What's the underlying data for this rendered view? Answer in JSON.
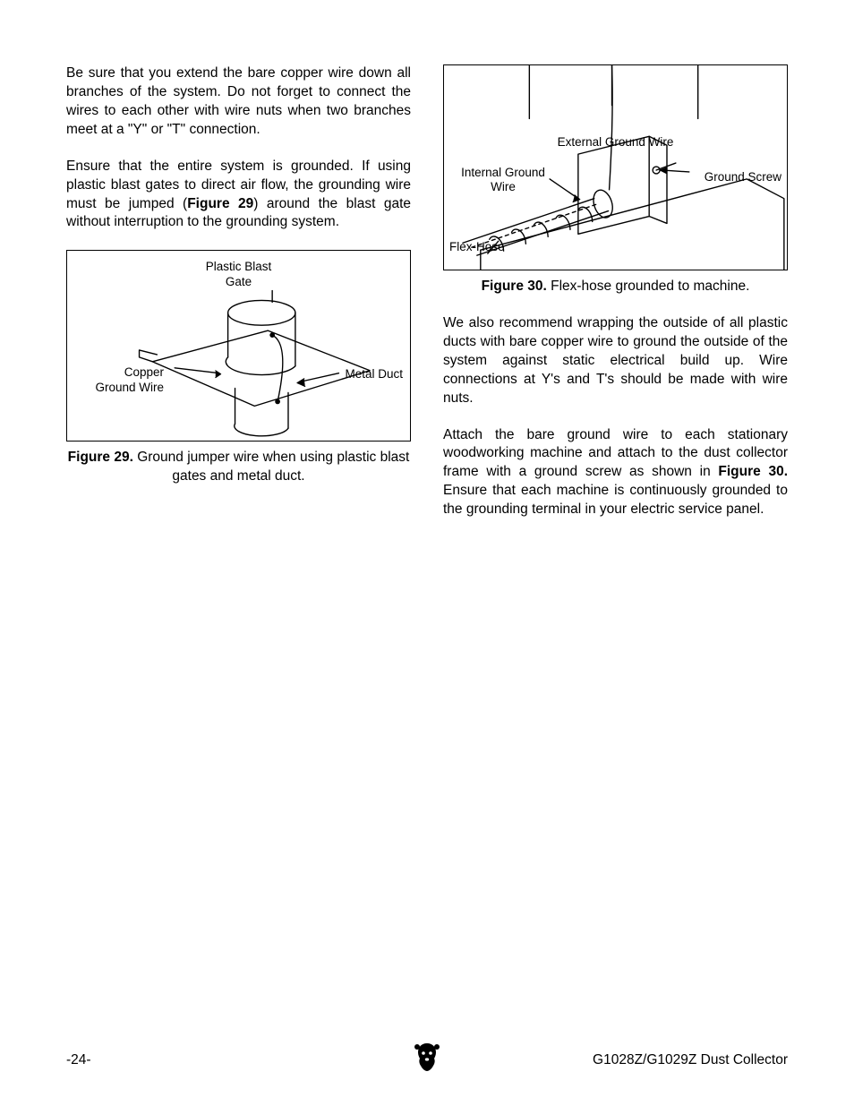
{
  "left": {
    "p1": "Be sure that you extend the bare copper wire down all branches of the system. Do not forget to connect the wires to each other with wire nuts when two branches meet at a \"Y\" or \"T\" connection.",
    "p2_a": "Ensure that the entire system is grounded. If using plastic blast gates to direct air flow, the grounding wire must be jumped (",
    "p2_b": "Figure 29",
    "p2_c": ") around the blast gate without interruption to the grounding system.",
    "fig29": {
      "label_top": "Plastic Blast\nGate",
      "label_left": "Copper\nGround Wire",
      "label_right": "Metal Duct",
      "caption_bold": "Figure 29.",
      "caption_rest": " Ground jumper wire when using plastic blast gates and metal duct."
    }
  },
  "right": {
    "fig30": {
      "label_ext": "External Ground Wire",
      "label_int": "Internal Ground\nWire",
      "label_screw": "Ground Screw",
      "label_flex": "Flex-Hose",
      "caption_bold": "Figure 30.",
      "caption_rest": " Flex-hose grounded to machine."
    },
    "p1": "We also recommend wrapping the outside of all plastic ducts with bare copper wire to ground the outside of the system against static electrical build up. Wire connections at Y's and T's should be made with wire nuts.",
    "p2_a": "Attach the bare ground wire to each stationary woodworking machine and attach to the dust collector frame with a ground screw as shown in ",
    "p2_b": "Figure 30.",
    "p2_c": " Ensure that each machine is continuously grounded to the grounding terminal in your electric service panel."
  },
  "footer": {
    "page": "-24-",
    "title": "G1028Z/G1029Z Dust Collector"
  }
}
